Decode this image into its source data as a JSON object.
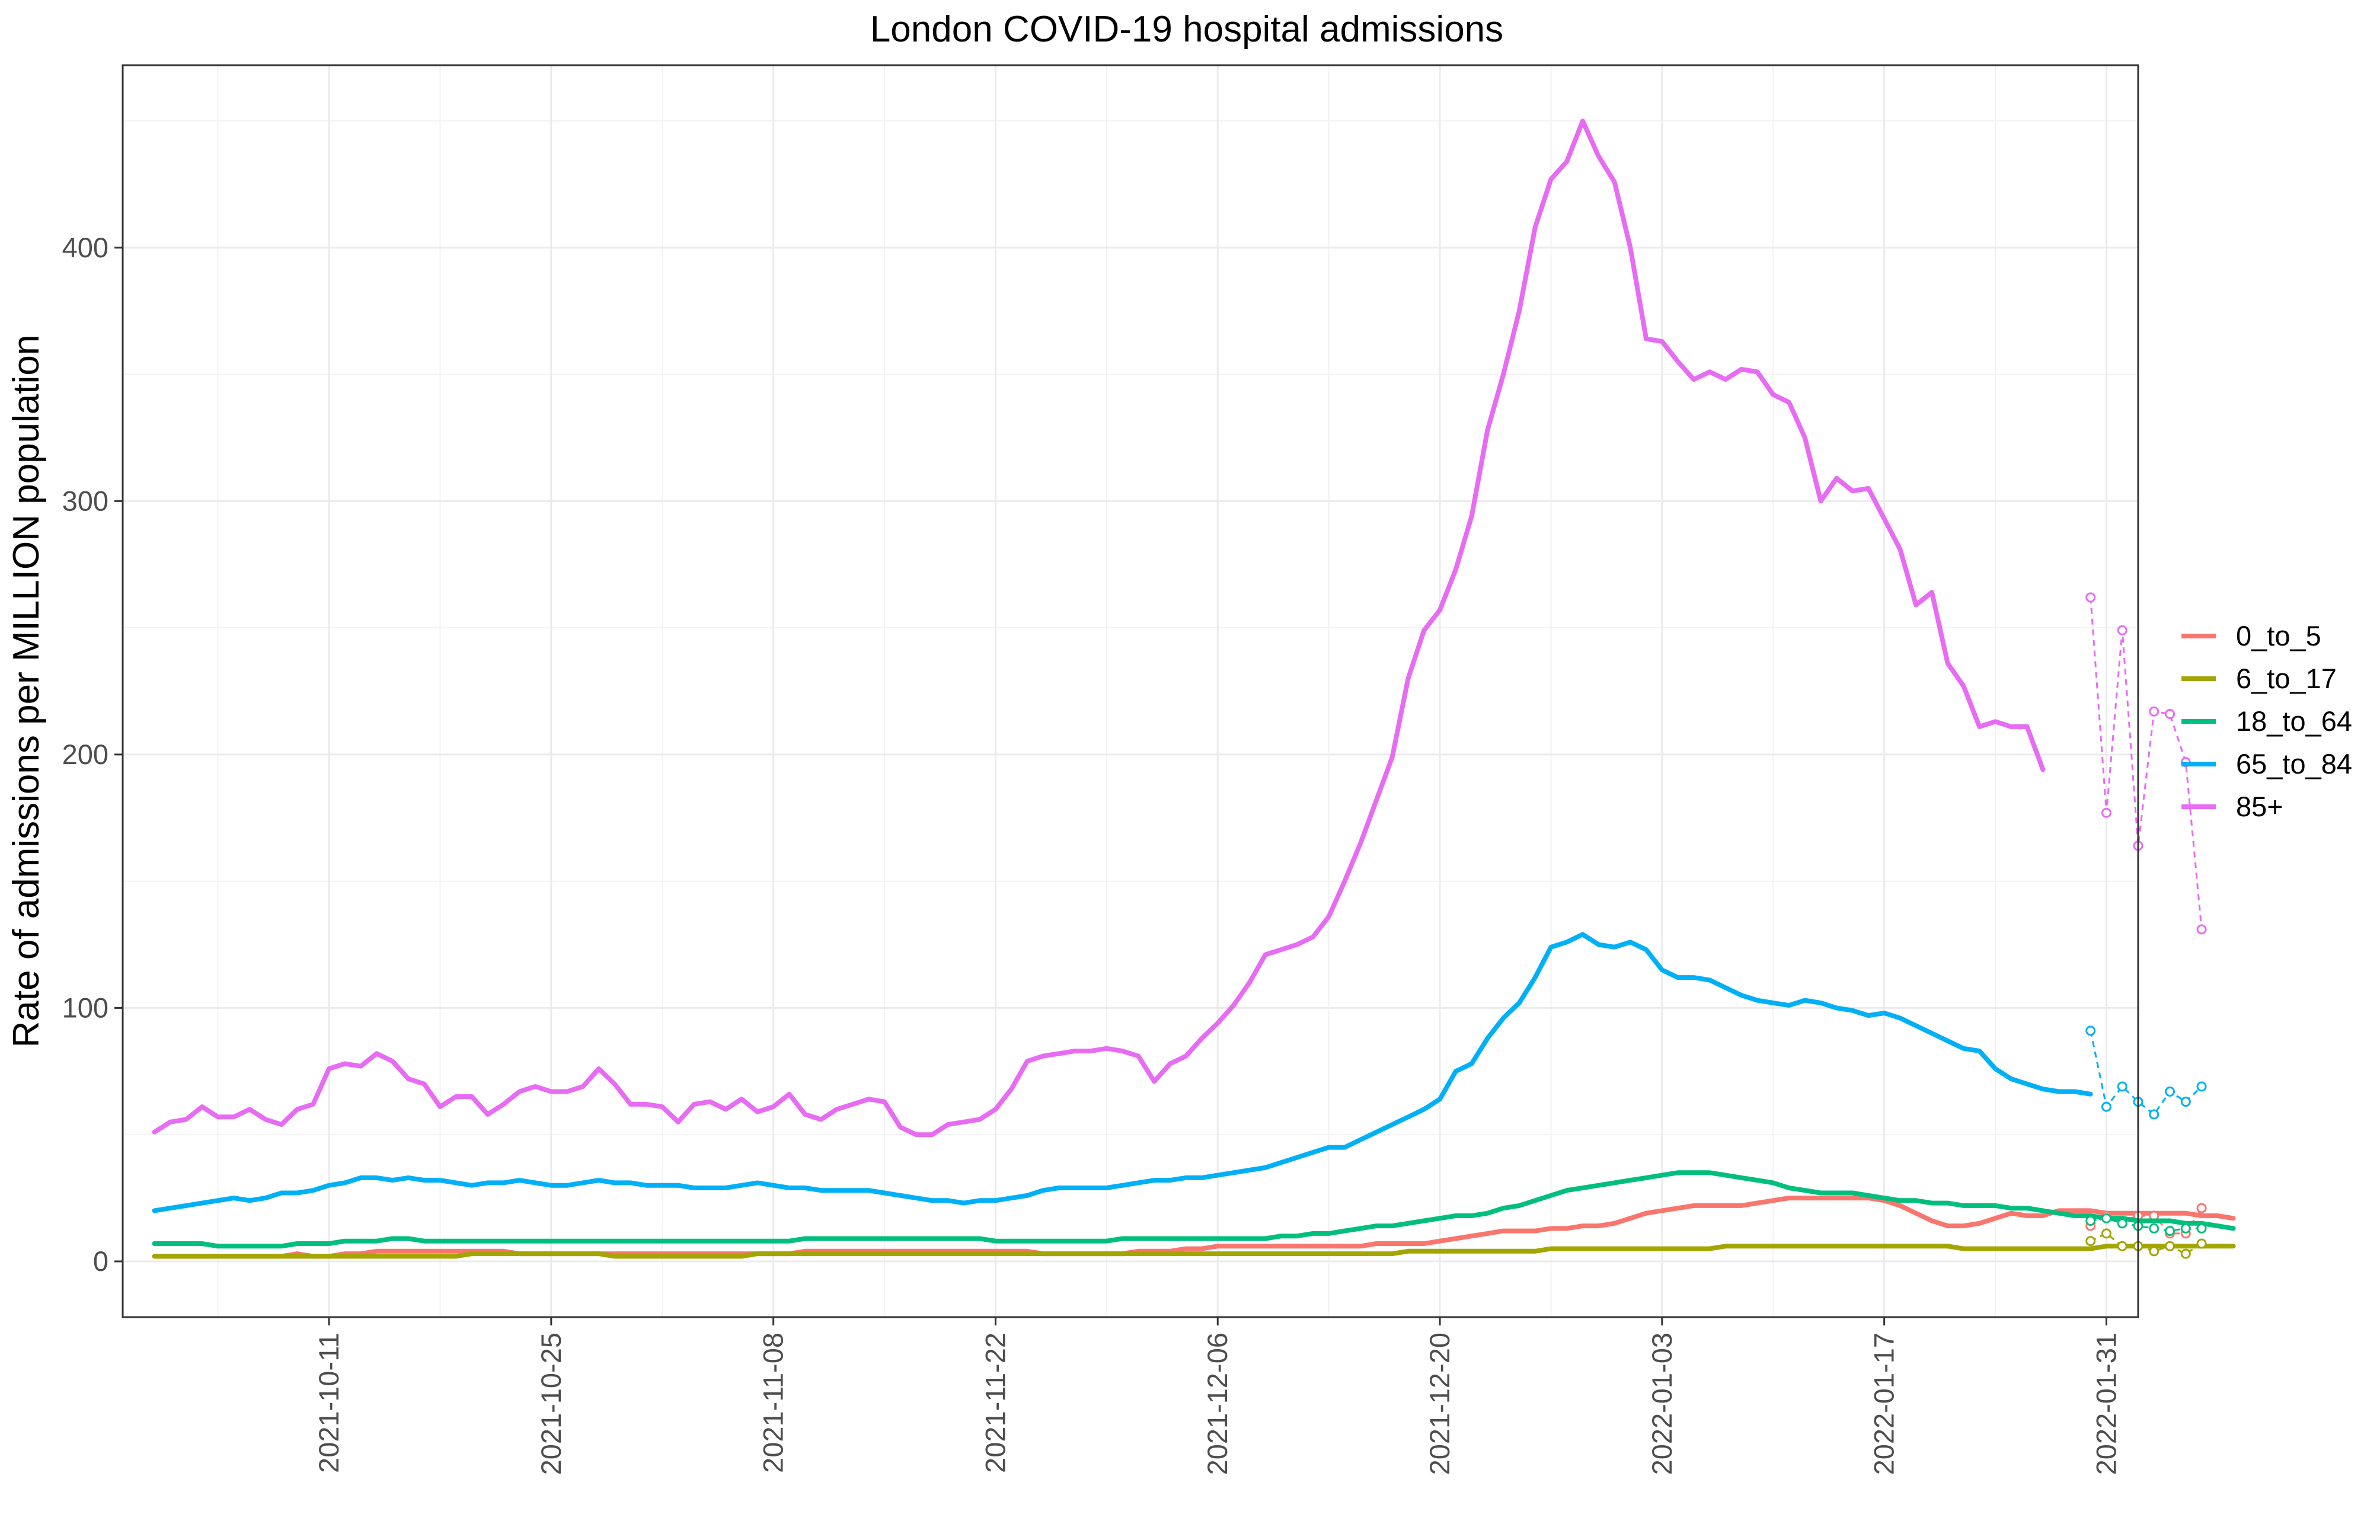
{
  "chart_data": {
    "type": "line",
    "title": "London COVID-19 hospital admissions",
    "xlabel": "",
    "ylabel": "Rate of admissions per MILLION population",
    "x_start": "2021-09-30",
    "xlim": [
      "2021-09-28",
      "2022-02-02"
    ],
    "ylim": [
      -22,
      472
    ],
    "y_ticks": [
      0,
      100,
      200,
      300,
      400
    ],
    "x_ticks": [
      "2021-10-11",
      "2021-10-25",
      "2021-11-08",
      "2021-11-22",
      "2021-12-06",
      "2021-12-20",
      "2022-01-03",
      "2022-01-17",
      "2022-01-31"
    ],
    "grid": true,
    "legend_position": "right",
    "series": [
      {
        "name": "0_to_5",
        "color": "#F8766D",
        "values": [
          2,
          2,
          2,
          2,
          2,
          2,
          2,
          2,
          2,
          3,
          2,
          2,
          3,
          3,
          4,
          4,
          4,
          4,
          4,
          4,
          4,
          4,
          4,
          3,
          3,
          3,
          3,
          3,
          3,
          3,
          3,
          3,
          3,
          3,
          3,
          3,
          3,
          3,
          3,
          3,
          3,
          4,
          4,
          4,
          4,
          4,
          4,
          4,
          4,
          4,
          4,
          4,
          4,
          4,
          4,
          4,
          3,
          3,
          3,
          3,
          3,
          3,
          4,
          4,
          4,
          5,
          5,
          6,
          6,
          6,
          6,
          6,
          6,
          6,
          6,
          6,
          6,
          7,
          7,
          7,
          7,
          8,
          9,
          10,
          11,
          12,
          12,
          12,
          13,
          13,
          14,
          14,
          15,
          17,
          19,
          20,
          21,
          22,
          22,
          22,
          22,
          23,
          24,
          25,
          25,
          25,
          25,
          25,
          25,
          24,
          22,
          19,
          16,
          14,
          14,
          15,
          17,
          19,
          18,
          18,
          20,
          20,
          20,
          19,
          19,
          19,
          19,
          19,
          19,
          18,
          18,
          17
        ],
        "provisional": [
          [
            122,
            14
          ],
          [
            123,
            18
          ],
          [
            124,
            16
          ],
          [
            125,
            18
          ],
          [
            126,
            18
          ],
          [
            127,
            11
          ],
          [
            128,
            11
          ],
          [
            129,
            21
          ]
        ]
      },
      {
        "name": "6_to_17",
        "color": "#A3A500",
        "values": [
          2,
          2,
          2,
          2,
          2,
          2,
          2,
          2,
          2,
          2,
          2,
          2,
          2,
          2,
          2,
          2,
          2,
          2,
          2,
          2,
          3,
          3,
          3,
          3,
          3,
          3,
          3,
          3,
          3,
          2,
          2,
          2,
          2,
          2,
          2,
          2,
          2,
          2,
          3,
          3,
          3,
          3,
          3,
          3,
          3,
          3,
          3,
          3,
          3,
          3,
          3,
          3,
          3,
          3,
          3,
          3,
          3,
          3,
          3,
          3,
          3,
          3,
          3,
          3,
          3,
          3,
          3,
          3,
          3,
          3,
          3,
          3,
          3,
          3,
          3,
          3,
          3,
          3,
          3,
          4,
          4,
          4,
          4,
          4,
          4,
          4,
          4,
          4,
          5,
          5,
          5,
          5,
          5,
          5,
          5,
          5,
          5,
          5,
          5,
          6,
          6,
          6,
          6,
          6,
          6,
          6,
          6,
          6,
          6,
          6,
          6,
          6,
          6,
          6,
          5,
          5,
          5,
          5,
          5,
          5,
          5,
          5,
          5,
          6,
          6,
          6,
          6,
          6,
          6,
          6,
          6,
          6
        ],
        "provisional": [
          [
            122,
            8
          ],
          [
            123,
            11
          ],
          [
            124,
            6
          ],
          [
            125,
            6
          ],
          [
            126,
            4
          ],
          [
            127,
            6
          ],
          [
            128,
            3
          ],
          [
            129,
            7
          ]
        ]
      },
      {
        "name": "18_to_64",
        "color": "#00BF7D",
        "values": [
          7,
          7,
          7,
          7,
          6,
          6,
          6,
          6,
          6,
          7,
          7,
          7,
          8,
          8,
          8,
          9,
          9,
          8,
          8,
          8,
          8,
          8,
          8,
          8,
          8,
          8,
          8,
          8,
          8,
          8,
          8,
          8,
          8,
          8,
          8,
          8,
          8,
          8,
          8,
          8,
          8,
          9,
          9,
          9,
          9,
          9,
          9,
          9,
          9,
          9,
          9,
          9,
          9,
          8,
          8,
          8,
          8,
          8,
          8,
          8,
          8,
          9,
          9,
          9,
          9,
          9,
          9,
          9,
          9,
          9,
          9,
          10,
          10,
          11,
          11,
          12,
          13,
          14,
          14,
          15,
          16,
          17,
          18,
          18,
          19,
          21,
          22,
          24,
          26,
          28,
          29,
          30,
          31,
          32,
          33,
          34,
          35,
          35,
          35,
          34,
          33,
          32,
          31,
          29,
          28,
          27,
          27,
          27,
          26,
          25,
          24,
          24,
          23,
          23,
          22,
          22,
          22,
          21,
          21,
          20,
          19,
          18,
          18,
          17,
          17,
          16,
          16,
          16,
          15,
          15,
          14,
          13
        ],
        "provisional": [
          [
            122,
            16
          ],
          [
            123,
            17
          ],
          [
            124,
            15
          ],
          [
            125,
            14
          ],
          [
            126,
            13
          ],
          [
            127,
            12
          ],
          [
            128,
            13
          ],
          [
            129,
            13
          ]
        ]
      },
      {
        "name": "65_to_84",
        "color": "#00B0F6",
        "values": [
          20,
          21,
          22,
          23,
          24,
          25,
          24,
          25,
          27,
          27,
          28,
          30,
          31,
          33,
          33,
          32,
          33,
          32,
          32,
          31,
          30,
          31,
          31,
          32,
          31,
          30,
          30,
          31,
          32,
          31,
          31,
          30,
          30,
          30,
          29,
          29,
          29,
          30,
          31,
          30,
          29,
          29,
          28,
          28,
          28,
          28,
          27,
          26,
          25,
          24,
          24,
          23,
          24,
          24,
          25,
          26,
          28,
          29,
          29,
          29,
          29,
          30,
          31,
          32,
          32,
          33,
          33,
          34,
          35,
          36,
          37,
          39,
          41,
          43,
          45,
          45,
          48,
          51,
          54,
          57,
          60,
          64,
          75,
          78,
          88,
          96,
          102,
          112,
          124,
          126,
          129,
          125,
          124,
          126,
          123,
          115,
          112,
          112,
          111,
          108,
          105,
          103,
          102,
          101,
          103,
          102,
          100,
          99,
          97,
          98,
          96,
          93,
          90,
          87,
          84,
          83,
          76,
          72,
          70,
          68,
          67,
          67,
          66
        ],
        "provisional": [
          [
            122,
            91
          ],
          [
            123,
            61
          ],
          [
            124,
            69
          ],
          [
            125,
            63
          ],
          [
            126,
            58
          ],
          [
            127,
            67
          ],
          [
            128,
            63
          ],
          [
            129,
            69
          ]
        ]
      },
      {
        "name": "85+",
        "color": "#E76BF3",
        "values": [
          51,
          55,
          56,
          61,
          57,
          57,
          60,
          56,
          54,
          60,
          62,
          76,
          78,
          77,
          82,
          79,
          72,
          70,
          61,
          65,
          65,
          58,
          62,
          67,
          69,
          67,
          67,
          69,
          76,
          70,
          62,
          62,
          61,
          55,
          62,
          63,
          60,
          64,
          59,
          61,
          66,
          58,
          56,
          60,
          62,
          64,
          63,
          53,
          50,
          50,
          54,
          55,
          56,
          60,
          68,
          79,
          81,
          82,
          83,
          83,
          84,
          83,
          81,
          71,
          78,
          81,
          88,
          94,
          101,
          110,
          121,
          123,
          125,
          128,
          136,
          150,
          165,
          182,
          199,
          230,
          249,
          257,
          273,
          294,
          328,
          350,
          375,
          408,
          427,
          434,
          450,
          436,
          426,
          400,
          364,
          363,
          355,
          348,
          351,
          348,
          352,
          351,
          342,
          339,
          325,
          300,
          309,
          304,
          305,
          293,
          281,
          259,
          264,
          236,
          227,
          211,
          213,
          211,
          211,
          194
        ],
        "provisional": [
          [
            122,
            262
          ],
          [
            123,
            177
          ],
          [
            124,
            249
          ],
          [
            125,
            164
          ],
          [
            126,
            217
          ],
          [
            127,
            216
          ],
          [
            128,
            197
          ],
          [
            129,
            131
          ]
        ]
      }
    ]
  }
}
